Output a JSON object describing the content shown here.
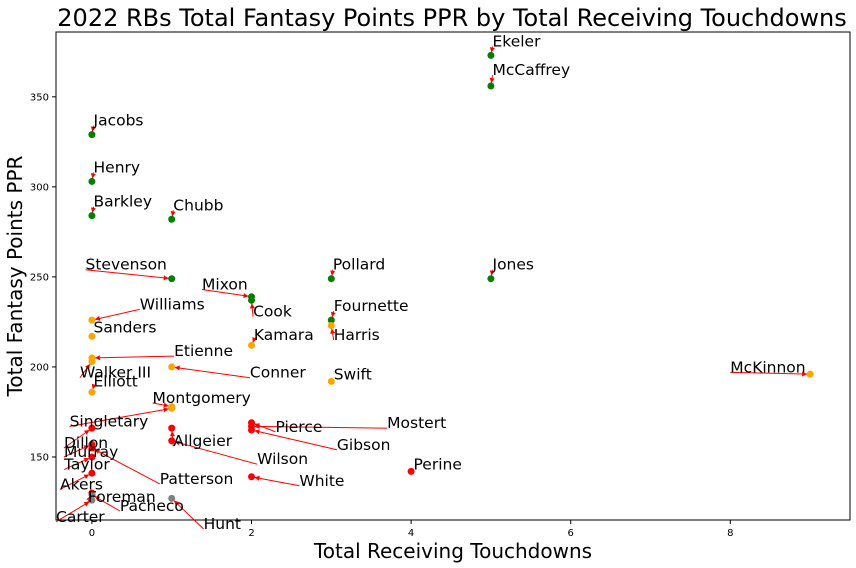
{
  "chart_data": {
    "type": "scatter",
    "title": "2022 RBs Total Fantasy Points PPR by Total Receiving Touchdowns",
    "xlabel": "Total Receiving Touchdowns",
    "ylabel": "Total Fantasy Points PPR",
    "xlim": [
      -0.45,
      9.5
    ],
    "ylim": [
      115,
      386
    ],
    "xticks": [
      0,
      2,
      4,
      6,
      8
    ],
    "yticks": [
      150,
      200,
      250,
      300,
      350
    ],
    "grid": false,
    "colors": {
      "green": "#008000",
      "orange": "#FFA500",
      "red": "#FF0000",
      "grey": "#808080",
      "arrow": "#FF0000"
    },
    "points": [
      {
        "name": "Ekeler",
        "x": 5,
        "y": 373,
        "color": "green",
        "lx": 5.02,
        "ly": 378
      },
      {
        "name": "McCaffrey",
        "x": 5,
        "y": 356,
        "color": "green",
        "lx": 5.02,
        "ly": 362
      },
      {
        "name": "Jacobs",
        "x": 0,
        "y": 329,
        "color": "green",
        "lx": 0.02,
        "ly": 334
      },
      {
        "name": "Henry",
        "x": 0,
        "y": 303,
        "color": "green",
        "lx": 0.02,
        "ly": 308
      },
      {
        "name": "Barkley",
        "x": 0,
        "y": 284,
        "color": "green",
        "lx": 0.02,
        "ly": 289
      },
      {
        "name": "Chubb",
        "x": 1,
        "y": 282,
        "color": "green",
        "lx": 1.02,
        "ly": 287
      },
      {
        "name": "Stevenson",
        "x": 1,
        "y": 249,
        "color": "green",
        "lx": -0.08,
        "ly": 254
      },
      {
        "name": "Pollard",
        "x": 3,
        "y": 249,
        "color": "green",
        "lx": 3.02,
        "ly": 254
      },
      {
        "name": "Jones",
        "x": 5,
        "y": 249,
        "color": "green",
        "lx": 5.02,
        "ly": 254
      },
      {
        "name": "Mixon",
        "x": 2,
        "y": 239,
        "color": "green",
        "lx": 1.38,
        "ly": 243
      },
      {
        "name": "Cook",
        "x": 2,
        "y": 237,
        "color": "green",
        "lx": 2.02,
        "ly": 228
      },
      {
        "name": "Fournette",
        "x": 3,
        "y": 226,
        "color": "green",
        "lx": 3.03,
        "ly": 231
      },
      {
        "name": "Williams",
        "x": 0,
        "y": 226,
        "color": "orange",
        "lx": 0.6,
        "ly": 232
      },
      {
        "name": "Harris",
        "x": 3,
        "y": 223,
        "color": "orange",
        "lx": 3.03,
        "ly": 215
      },
      {
        "name": "Sanders",
        "x": 0,
        "y": 217,
        "color": "orange",
        "lx": 0.02,
        "ly": 219
      },
      {
        "name": "Kamara",
        "x": 2,
        "y": 212,
        "color": "orange",
        "lx": 2.03,
        "ly": 215
      },
      {
        "name": "Etienne",
        "x": 0,
        "y": 205,
        "color": "orange",
        "lx": 1.03,
        "ly": 206
      },
      {
        "name": "Walker III",
        "x": 0,
        "y": 203,
        "color": "orange",
        "lx": -0.15,
        "ly": 194
      },
      {
        "name": "Conner",
        "x": 1,
        "y": 200,
        "color": "orange",
        "lx": 1.98,
        "ly": 194
      },
      {
        "name": "Elliott",
        "x": 0,
        "y": 186,
        "color": "orange",
        "lx": 0.02,
        "ly": 189
      },
      {
        "name": "Swift",
        "x": 3,
        "y": 192,
        "color": "orange",
        "lx": 3.03,
        "ly": 193
      },
      {
        "name": "McKinnon",
        "x": 9,
        "y": 196,
        "color": "orange",
        "lx": 8.0,
        "ly": 197
      },
      {
        "name": "Montgomery",
        "x": 1,
        "y": 178,
        "color": "orange",
        "lx": 0.76,
        "ly": 180
      },
      {
        "name": "Singletary",
        "x": 1,
        "y": 177,
        "color": "orange",
        "lx": -0.28,
        "ly": 167
      },
      {
        "name": "Pierce",
        "x": 2,
        "y": 169,
        "color": "red",
        "lx": 2.3,
        "ly": 164
      },
      {
        "name": "Mostert",
        "x": 2,
        "y": 167,
        "color": "red",
        "lx": 3.7,
        "ly": 166
      },
      {
        "name": "Allgeier",
        "x": 1,
        "y": 166,
        "color": "red",
        "lx": 1.02,
        "ly": 156
      },
      {
        "name": "Gibson",
        "x": 2,
        "y": 165,
        "color": "red",
        "lx": 3.07,
        "ly": 154
      },
      {
        "name": "Dillon",
        "x": 0,
        "y": 166,
        "color": "red",
        "lx": -0.35,
        "ly": 155
      },
      {
        "name": "Wilson",
        "x": 1,
        "y": 159,
        "color": "red",
        "lx": 2.07,
        "ly": 146
      },
      {
        "name": "Murray",
        "x": 0,
        "y": 157,
        "color": "red",
        "lx": -0.35,
        "ly": 150
      },
      {
        "name": "Patterson",
        "x": 0,
        "y": 155,
        "color": "red",
        "lx": 0.85,
        "ly": 135
      },
      {
        "name": "Taylor",
        "x": 0,
        "y": 150,
        "color": "red",
        "lx": -0.35,
        "ly": 143
      },
      {
        "name": "Perine",
        "x": 4,
        "y": 142,
        "color": "red",
        "lx": 4.03,
        "ly": 143
      },
      {
        "name": "White",
        "x": 2,
        "y": 139,
        "color": "red",
        "lx": 2.6,
        "ly": 134
      },
      {
        "name": "Akers",
        "x": 0,
        "y": 141,
        "color": "red",
        "lx": -0.4,
        "ly": 132
      },
      {
        "name": "Foreman",
        "x": 0,
        "y": 130,
        "color": "red",
        "lx": -0.05,
        "ly": 125
      },
      {
        "name": "Pacheco",
        "x": 0,
        "y": 129,
        "color": "grey",
        "lx": 0.35,
        "ly": 120
      },
      {
        "name": "Hunt",
        "x": 1,
        "y": 127,
        "color": "grey",
        "lx": 1.4,
        "ly": 110
      },
      {
        "name": "Carter",
        "x": 0,
        "y": 126,
        "color": "grey",
        "lx": -0.45,
        "ly": 114
      }
    ]
  }
}
